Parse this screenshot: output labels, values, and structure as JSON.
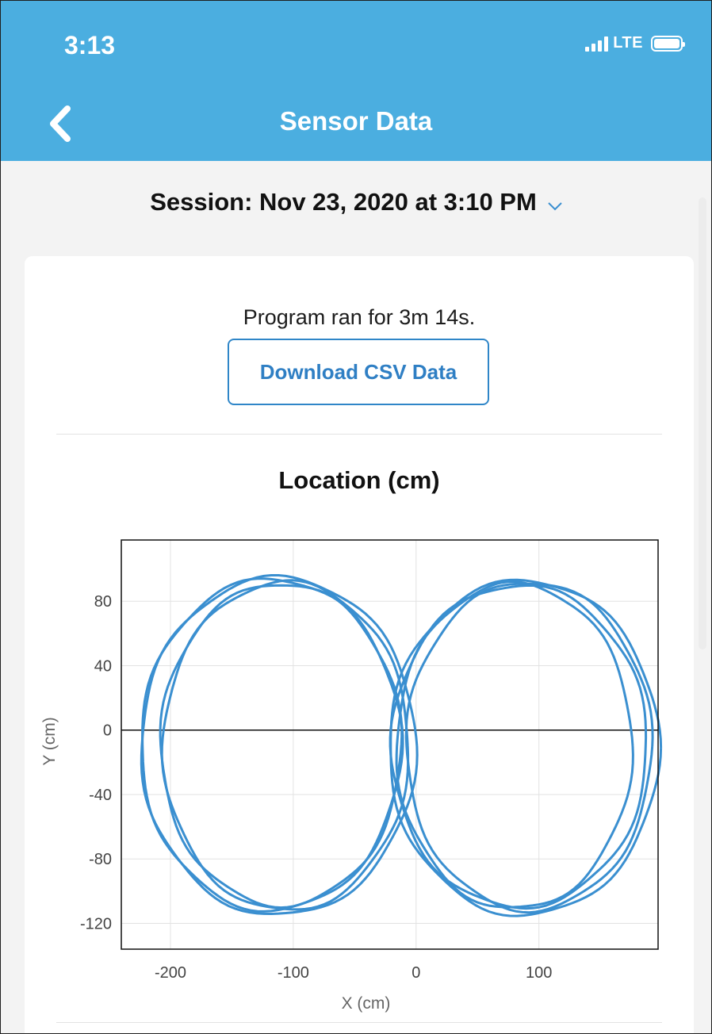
{
  "status_bar": {
    "time": "3:13",
    "network": "LTE"
  },
  "nav": {
    "title": "Sensor Data",
    "back_icon": "chevron-left-icon"
  },
  "session": {
    "label": "Session: Nov 23, 2020 at 3:10 PM",
    "dropdown_icon": "chevron-down-icon"
  },
  "card": {
    "run_text": "Program ran for 3m 14s.",
    "download_label": "Download CSV Data"
  },
  "colors": {
    "header": "#4baee0",
    "accent": "#2f86c8",
    "series": "#3a8fd0"
  },
  "chart_data": {
    "type": "scatter",
    "title": "Location (cm)",
    "xlabel": "X (cm)",
    "ylabel": "Y (cm)",
    "xlim": [
      -240,
      197
    ],
    "ylim": [
      -136,
      118
    ],
    "xticks": [
      -200,
      -100,
      0,
      100
    ],
    "yticks": [
      -120,
      -80,
      -40,
      0,
      40,
      80
    ],
    "xtick_labels": [
      "-200",
      "-100",
      "0",
      "100"
    ],
    "ytick_labels": [
      "-120",
      "-80",
      "-40",
      "0",
      "40",
      "80"
    ],
    "grid": true,
    "legend": "none",
    "series": [
      {
        "mode": "lines",
        "color": "#3a8fd0",
        "loops": [
          {
            "cx": -110,
            "cy": -9,
            "rx": 98,
            "ry": 100
          },
          {
            "cx": -118,
            "cy": -9,
            "rx": 106,
            "ry": 103
          },
          {
            "cx": -112,
            "cy": -10,
            "rx": 112,
            "ry": 105
          },
          {
            "cx": -106,
            "cy": -10,
            "rx": 100,
            "ry": 102
          },
          {
            "cx": 84,
            "cy": -10,
            "rx": 104,
            "ry": 100
          },
          {
            "cx": 92,
            "cy": -10,
            "rx": 100,
            "ry": 102
          },
          {
            "cx": 88,
            "cy": -11,
            "rx": 110,
            "ry": 104
          },
          {
            "cx": 80,
            "cy": -10,
            "rx": 96,
            "ry": 101
          }
        ]
      }
    ]
  }
}
